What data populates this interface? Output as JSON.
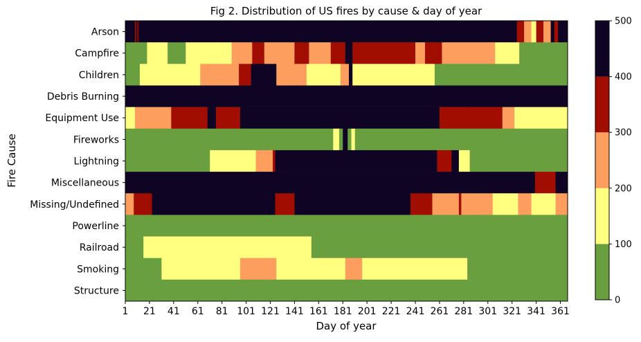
{
  "chart_data": {
    "type": "heatmap",
    "title": "Fig 2. Distribution of US fires by cause & day of year",
    "xlabel": "Day of year",
    "ylabel": "Fire Cause",
    "x_range": [
      1,
      366
    ],
    "x_ticks": [
      "1",
      "21",
      "41",
      "61",
      "81",
      "101",
      "121",
      "141",
      "161",
      "181",
      "201",
      "221",
      "241",
      "261",
      "281",
      "301",
      "321",
      "341",
      "361"
    ],
    "categories": [
      "Arson",
      "Campfire",
      "Children",
      "Debris Burning",
      "Equipment Use",
      "Fireworks",
      "Lightning",
      "Miscellaneous",
      "Missing/Undefined",
      "Powerline",
      "Railroad",
      "Smoking",
      "Structure"
    ],
    "colorbar": {
      "boundaries": [
        0,
        100,
        200,
        300,
        400,
        500
      ],
      "tick_labels": [
        "0",
        "100",
        "200",
        "300",
        "400",
        "500"
      ],
      "colors": [
        "#6a9f3f",
        "#ffff80",
        "#fd9e5e",
        "#a10d00",
        "#0f0424"
      ]
    },
    "rows": [
      {
        "name": "Arson",
        "segments": [
          [
            1,
            8,
            4
          ],
          [
            9,
            9,
            3
          ],
          [
            10,
            10,
            4
          ],
          [
            11,
            11,
            3
          ],
          [
            12,
            324,
            4
          ],
          [
            325,
            330,
            3
          ],
          [
            331,
            336,
            2
          ],
          [
            337,
            340,
            1
          ],
          [
            341,
            346,
            3
          ],
          [
            347,
            352,
            2
          ],
          [
            353,
            355,
            4
          ],
          [
            356,
            358,
            3
          ],
          [
            359,
            366,
            4
          ]
        ]
      },
      {
        "name": "Campfire",
        "segments": [
          [
            1,
            18,
            0
          ],
          [
            19,
            35,
            1
          ],
          [
            36,
            50,
            0
          ],
          [
            51,
            88,
            1
          ],
          [
            89,
            105,
            2
          ],
          [
            106,
            115,
            3
          ],
          [
            116,
            140,
            2
          ],
          [
            141,
            152,
            3
          ],
          [
            153,
            170,
            2
          ],
          [
            171,
            182,
            3
          ],
          [
            183,
            188,
            4
          ],
          [
            189,
            200,
            3
          ],
          [
            201,
            240,
            3
          ],
          [
            241,
            248,
            2
          ],
          [
            249,
            262,
            3
          ],
          [
            263,
            306,
            2
          ],
          [
            307,
            326,
            1
          ],
          [
            327,
            366,
            0
          ]
        ]
      },
      {
        "name": "Children",
        "segments": [
          [
            1,
            12,
            0
          ],
          [
            13,
            28,
            1
          ],
          [
            29,
            62,
            1
          ],
          [
            63,
            94,
            2
          ],
          [
            95,
            104,
            3
          ],
          [
            105,
            125,
            4
          ],
          [
            126,
            150,
            2
          ],
          [
            151,
            178,
            1
          ],
          [
            179,
            185,
            2
          ],
          [
            186,
            188,
            4
          ],
          [
            189,
            256,
            1
          ],
          [
            257,
            328,
            0
          ],
          [
            329,
            366,
            0
          ]
        ]
      },
      {
        "name": "Debris Burning",
        "segments": [
          [
            1,
            366,
            4
          ]
        ]
      },
      {
        "name": "Equipment Use",
        "segments": [
          [
            1,
            8,
            1
          ],
          [
            9,
            38,
            2
          ],
          [
            39,
            68,
            3
          ],
          [
            69,
            75,
            4
          ],
          [
            76,
            95,
            3
          ],
          [
            96,
            260,
            4
          ],
          [
            261,
            282,
            3
          ],
          [
            283,
            312,
            3
          ],
          [
            313,
            322,
            2
          ],
          [
            323,
            366,
            1
          ]
        ]
      },
      {
        "name": "Fireworks",
        "segments": [
          [
            1,
            172,
            0
          ],
          [
            173,
            177,
            1
          ],
          [
            178,
            180,
            0
          ],
          [
            181,
            184,
            4
          ],
          [
            185,
            187,
            0
          ],
          [
            188,
            190,
            1
          ],
          [
            191,
            366,
            0
          ]
        ]
      },
      {
        "name": "Lightning",
        "segments": [
          [
            1,
            70,
            0
          ],
          [
            71,
            84,
            1
          ],
          [
            85,
            108,
            1
          ],
          [
            109,
            122,
            2
          ],
          [
            123,
            124,
            3
          ],
          [
            125,
            258,
            4
          ],
          [
            259,
            270,
            3
          ],
          [
            271,
            276,
            4
          ],
          [
            277,
            285,
            1
          ],
          [
            286,
            366,
            0
          ]
        ]
      },
      {
        "name": "Miscellaneous",
        "segments": [
          [
            1,
            339,
            4
          ],
          [
            340,
            356,
            3
          ],
          [
            357,
            366,
            4
          ]
        ]
      },
      {
        "name": "Missing/Undefined",
        "segments": [
          [
            1,
            7,
            2
          ],
          [
            8,
            22,
            3
          ],
          [
            23,
            124,
            4
          ],
          [
            125,
            140,
            3
          ],
          [
            141,
            236,
            4
          ],
          [
            237,
            254,
            3
          ],
          [
            255,
            276,
            2
          ],
          [
            277,
            278,
            3
          ],
          [
            279,
            304,
            2
          ],
          [
            305,
            325,
            1
          ],
          [
            326,
            336,
            2
          ],
          [
            337,
            356,
            1
          ],
          [
            357,
            366,
            2
          ]
        ]
      },
      {
        "name": "Powerline",
        "segments": [
          [
            1,
            366,
            0
          ]
        ]
      },
      {
        "name": "Railroad",
        "segments": [
          [
            1,
            15,
            0
          ],
          [
            16,
            35,
            1
          ],
          [
            36,
            154,
            1
          ],
          [
            155,
            366,
            0
          ]
        ]
      },
      {
        "name": "Smoking",
        "segments": [
          [
            1,
            30,
            0
          ],
          [
            31,
            95,
            1
          ],
          [
            96,
            125,
            2
          ],
          [
            126,
            182,
            1
          ],
          [
            183,
            196,
            2
          ],
          [
            197,
            244,
            1
          ],
          [
            245,
            283,
            1
          ],
          [
            284,
            330,
            0
          ],
          [
            331,
            366,
            0
          ]
        ]
      },
      {
        "name": "Structure",
        "segments": [
          [
            1,
            366,
            0
          ]
        ]
      }
    ]
  }
}
